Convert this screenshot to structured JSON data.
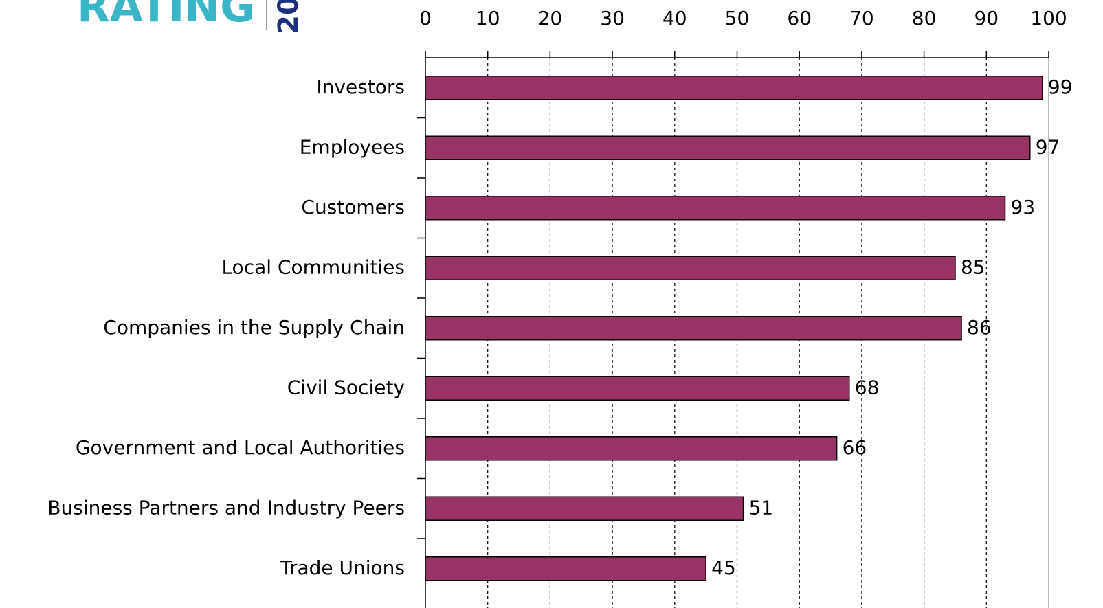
{
  "logo": {
    "text": "RATING",
    "year": "20"
  },
  "chart_data": {
    "type": "hbar",
    "categories": [
      "Investors",
      "Employees",
      "Customers",
      "Local Communities",
      "Companies in the Supply Chain",
      "Civil Society",
      "Government and Local Authorities",
      "Business Partners and Industry Peers",
      "Trade Unions"
    ],
    "values": [
      99,
      97,
      93,
      85,
      86,
      68,
      66,
      51,
      45
    ],
    "color": "#993366",
    "xlim": [
      0,
      100
    ],
    "xticks": [
      0,
      10,
      20,
      30,
      40,
      50,
      60,
      70,
      80,
      90,
      100
    ],
    "grid": true
  }
}
